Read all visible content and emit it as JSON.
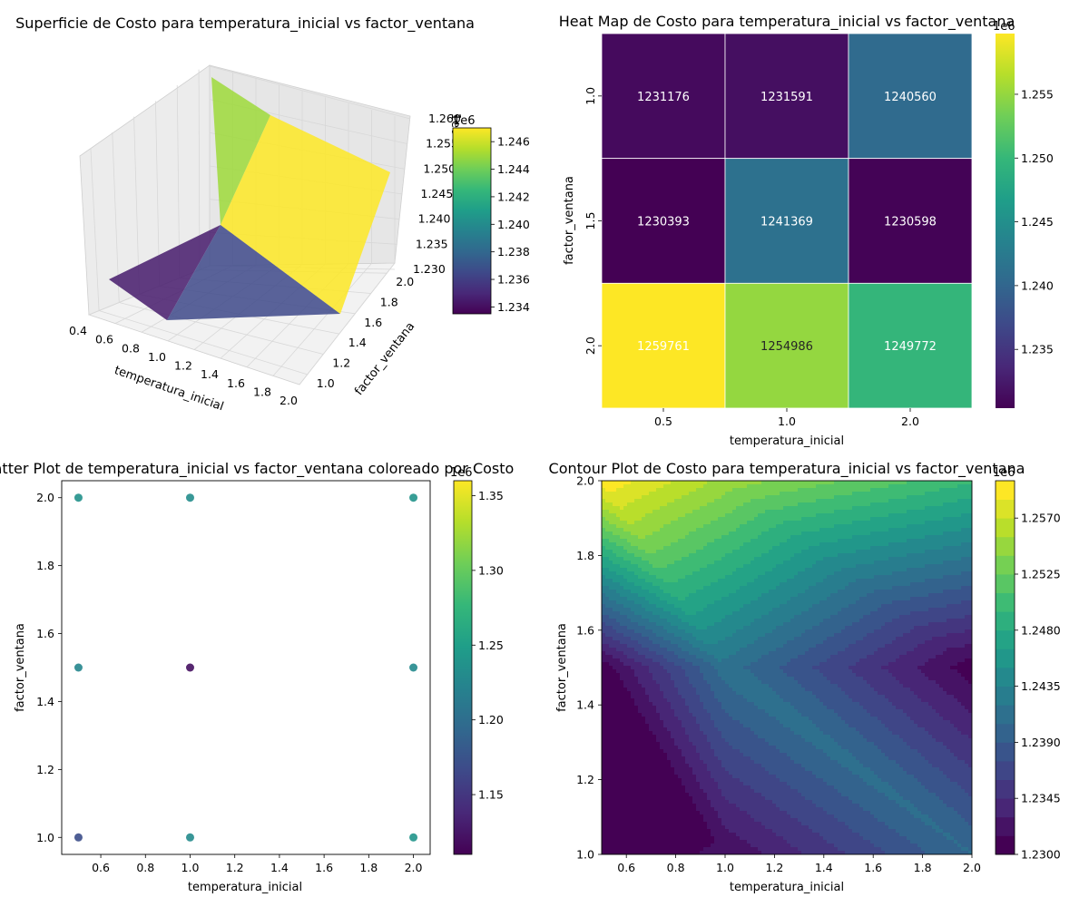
{
  "colors": {
    "viridis": [
      "#440154",
      "#482878",
      "#3e4989",
      "#31688e",
      "#26828e",
      "#1f9e89",
      "#35b779",
      "#6ece58",
      "#b5de2b",
      "#fde725"
    ],
    "grid": "#dddddd",
    "pane": "#f2f2f2"
  },
  "chart_data": [
    {
      "type": "surface",
      "title": "Superficie de Costo para temperatura_inicial vs factor_ventana",
      "xlabel": "temperatura_inicial",
      "ylabel": "factor_ventana",
      "x_ticks": [
        "0.4",
        "0.6",
        "0.8",
        "1.0",
        "1.2",
        "1.4",
        "1.6",
        "1.8",
        "2.0"
      ],
      "y_ticks": [
        "1.0",
        "1.2",
        "1.4",
        "1.6",
        "1.8",
        "2.0"
      ],
      "z_ticks": [
        "1.230",
        "1.235",
        "1.240",
        "1.245",
        "1.250",
        "1.255",
        "1.260"
      ],
      "z_offset": "1e6",
      "colorbar_ticks": [
        "1.234",
        "1.236",
        "1.238",
        "1.240",
        "1.242",
        "1.244",
        "1.246"
      ],
      "colorbar_offset": "1e6",
      "zlim": [
        1230000,
        1260000
      ],
      "clim": [
        1233500,
        1247000
      ],
      "triangles": [
        {
          "cost": 1234500
        },
        {
          "cost": 1236500
        },
        {
          "cost": 1245000
        },
        {
          "cost": 1249000
        }
      ]
    },
    {
      "type": "heatmap",
      "title": "Heat Map de Costo para temperatura_inicial vs factor_ventana",
      "xlabel": "temperatura_inicial",
      "ylabel": "factor_ventana",
      "x_categories": [
        "0.5",
        "1.0",
        "2.0"
      ],
      "y_categories": [
        "1.0",
        "1.5",
        "2.0"
      ],
      "values": [
        [
          1231176,
          1231591,
          1240560
        ],
        [
          1230393,
          1241369,
          1230598
        ],
        [
          1259761,
          1254986,
          1249772
        ]
      ],
      "colorbar_ticks": [
        "1.235",
        "1.240",
        "1.245",
        "1.250",
        "1.255"
      ],
      "colorbar_offset": "1e6",
      "clim": [
        1230393,
        1259761
      ]
    },
    {
      "type": "scatter",
      "title": "Scatter Plot de temperatura_inicial vs factor_ventana coloreado por Costo",
      "xlabel": "temperatura_inicial",
      "ylabel": "factor_ventana",
      "x_ticks": [
        "0.6",
        "0.8",
        "1.0",
        "1.2",
        "1.4",
        "1.6",
        "1.8",
        "2.0"
      ],
      "y_ticks": [
        "1.0",
        "1.2",
        "1.4",
        "1.6",
        "1.8",
        "2.0"
      ],
      "xlim": [
        0.425,
        2.075
      ],
      "ylim": [
        0.95,
        2.05
      ],
      "colorbar_ticks": [
        "1.15",
        "1.20",
        "1.25",
        "1.30",
        "1.35"
      ],
      "colorbar_offset": "1e6",
      "clim": [
        1110000,
        1360000
      ],
      "points": [
        {
          "x": 0.5,
          "y": 1.0,
          "cost": 1170000
        },
        {
          "x": 1.0,
          "y": 1.0,
          "cost": 1230000
        },
        {
          "x": 2.0,
          "y": 1.0,
          "cost": 1240000
        },
        {
          "x": 0.5,
          "y": 1.5,
          "cost": 1225000
        },
        {
          "x": 1.0,
          "y": 1.5,
          "cost": 1120000
        },
        {
          "x": 2.0,
          "y": 1.5,
          "cost": 1228000
        },
        {
          "x": 0.5,
          "y": 2.0,
          "cost": 1236000
        },
        {
          "x": 1.0,
          "y": 2.0,
          "cost": 1232000
        },
        {
          "x": 2.0,
          "y": 2.0,
          "cost": 1238000
        }
      ]
    },
    {
      "type": "contour",
      "title": "Contour Plot de Costo para temperatura_inicial vs factor_ventana",
      "xlabel": "temperatura_inicial",
      "ylabel": "factor_ventana",
      "x_ticks": [
        "0.6",
        "0.8",
        "1.0",
        "1.2",
        "1.4",
        "1.6",
        "1.8",
        "2.0"
      ],
      "y_ticks": [
        "1.0",
        "1.2",
        "1.4",
        "1.6",
        "1.8",
        "2.0"
      ],
      "xlim": [
        0.5,
        2.0
      ],
      "ylim": [
        1.0,
        2.0
      ],
      "x": [
        0.5,
        1.0,
        2.0
      ],
      "y": [
        1.0,
        1.5,
        2.0
      ],
      "z": [
        [
          1231176,
          1231591,
          1240560
        ],
        [
          1230393,
          1241369,
          1230598
        ],
        [
          1259761,
          1254986,
          1249772
        ]
      ],
      "colorbar_ticks": [
        "1.2300",
        "1.2345",
        "1.2390",
        "1.2435",
        "1.2480",
        "1.2525",
        "1.2570"
      ],
      "colorbar_offset": "1e6",
      "levels": {
        "min": 1230000,
        "max": 1260000,
        "step": 1500
      }
    }
  ]
}
